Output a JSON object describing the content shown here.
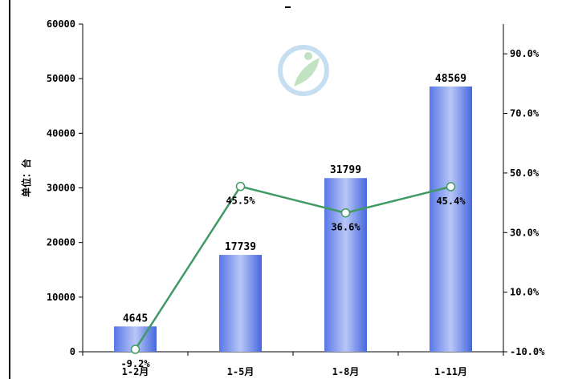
{
  "chart_data": {
    "type": "bar",
    "categories": [
      "1-2月",
      "1-5月",
      "1-8月",
      "1-11月"
    ],
    "values": [
      4645,
      17739,
      31799,
      48569
    ],
    "value_labels": [
      "4645",
      "17739",
      "31799",
      "48569"
    ],
    "line_values": [
      -9.2,
      45.5,
      36.6,
      45.4
    ],
    "line_labels": [
      "-9.2%",
      "45.5%",
      "36.6%",
      "45.4%"
    ],
    "ylabel": "单位：台",
    "ylim": [
      0,
      60000
    ],
    "yticks": [
      "0",
      "10000",
      "20000",
      "30000",
      "40000",
      "50000",
      "60000"
    ],
    "y2lim": [
      -10,
      100
    ],
    "y2ticks": [
      "-10.0%",
      "10.0%",
      "30.0%",
      "50.0%",
      "70.0%",
      "90.0%"
    ],
    "y2tick_values": [
      -10,
      10,
      30,
      50,
      70,
      90
    ],
    "colors": {
      "bar": "#4a6fe0",
      "bar_light": "#b8c6f6",
      "line": "#3f9a63"
    },
    "grid": false
  }
}
